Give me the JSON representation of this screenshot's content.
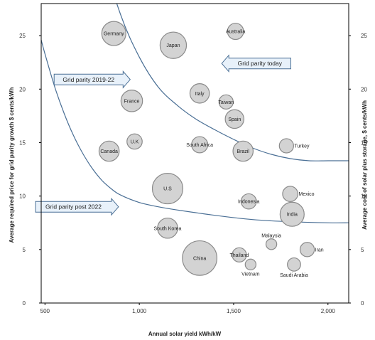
{
  "chart_data": {
    "type": "scatter",
    "subtype": "bubble",
    "xlabel": "Annual solar yield kWh/kW",
    "ylabel": "Average required price for grid parity growth $ cents/kWh",
    "ylabel_right": "Average cost of solar plus storage, $ cents/kWh",
    "xlim": [
      480,
      2110
    ],
    "ylim": [
      0,
      28
    ],
    "x_ticks": [
      500,
      1000,
      1500,
      2000
    ],
    "x_tick_labels": [
      "500",
      "1,000",
      "1,500",
      "2,000"
    ],
    "y_ticks": [
      0,
      5,
      10,
      15,
      20,
      25
    ],
    "y_tick_labels": [
      "0",
      "5",
      "10",
      "15",
      "20",
      "25"
    ],
    "y_right_ticks": [
      0,
      5,
      10,
      15,
      20,
      25
    ],
    "y_right_tick_labels": [
      "0",
      "5",
      "10",
      "15",
      "20",
      "25"
    ],
    "grid": false,
    "bubble_color": "#d3d3d3",
    "bubble_edge_color": "#8a8a8a",
    "series": [
      {
        "points": [
          {
            "label": "Germany",
            "x": 865,
            "y": 25.2,
            "size": 2.0
          },
          {
            "label": "Australia",
            "x": 1510,
            "y": 25.4,
            "size": 0.9
          },
          {
            "label": "Japan",
            "x": 1180,
            "y": 24.1,
            "size": 2.4
          },
          {
            "label": "Italy",
            "x": 1320,
            "y": 19.6,
            "size": 1.3
          },
          {
            "label": "Taiwan",
            "x": 1460,
            "y": 18.8,
            "size": 0.7
          },
          {
            "label": "France",
            "x": 960,
            "y": 18.9,
            "size": 1.6
          },
          {
            "label": "Spain",
            "x": 1505,
            "y": 17.2,
            "size": 1.2
          },
          {
            "label": "South Africa",
            "x": 1320,
            "y": 14.8,
            "size": 0.9
          },
          {
            "label": "Brazil",
            "x": 1550,
            "y": 14.2,
            "size": 1.4
          },
          {
            "label": "Turkey",
            "x": 1780,
            "y": 14.7,
            "size": 0.7
          },
          {
            "label": "Canada",
            "x": 840,
            "y": 14.2,
            "size": 1.4
          },
          {
            "label": "U.K",
            "x": 975,
            "y": 15.1,
            "size": 0.8
          },
          {
            "label": "U.S",
            "x": 1150,
            "y": 10.7,
            "size": 3.2
          },
          {
            "label": "Indonesia",
            "x": 1580,
            "y": 9.5,
            "size": 0.8
          },
          {
            "label": "Mexico",
            "x": 1800,
            "y": 10.2,
            "size": 0.8
          },
          {
            "label": "India",
            "x": 1810,
            "y": 8.3,
            "size": 2.0
          },
          {
            "label": "South Korea",
            "x": 1150,
            "y": 7.0,
            "size": 1.4
          },
          {
            "label": "China",
            "x": 1320,
            "y": 4.2,
            "size": 4.1
          },
          {
            "label": "Malaysia",
            "x": 1700,
            "y": 5.5,
            "size": 0.4
          },
          {
            "label": "Thailand",
            "x": 1530,
            "y": 4.5,
            "size": 0.7
          },
          {
            "label": "Vietnam",
            "x": 1590,
            "y": 3.6,
            "size": 0.4
          },
          {
            "label": "Iran",
            "x": 1890,
            "y": 5.0,
            "size": 0.7
          },
          {
            "label": "Saudi Arabia",
            "x": 1820,
            "y": 3.6,
            "size": 0.6
          }
        ]
      }
    ],
    "parity_curves": [
      {
        "label": "Grid parity today",
        "points": [
          [
            700,
            42
          ],
          [
            800,
            33
          ],
          [
            900,
            27
          ],
          [
            1000,
            23
          ],
          [
            1100,
            20.2
          ],
          [
            1200,
            18.5
          ],
          [
            1300,
            17.2
          ],
          [
            1400,
            16.2
          ],
          [
            1500,
            15.3
          ],
          [
            1600,
            14.5
          ],
          [
            1700,
            13.9
          ],
          [
            1800,
            13.5
          ],
          [
            1900,
            13.3
          ],
          [
            2000,
            13.3
          ],
          [
            2110,
            13.3
          ]
        ]
      },
      {
        "label": "Grid parity post 2022",
        "points": [
          [
            480,
            24.6
          ],
          [
            500,
            23.3
          ],
          [
            550,
            20.3
          ],
          [
            600,
            17.8
          ],
          [
            650,
            15.7
          ],
          [
            700,
            14.0
          ],
          [
            750,
            12.6
          ],
          [
            800,
            11.5
          ],
          [
            850,
            10.7
          ],
          [
            900,
            10.1
          ],
          [
            1000,
            9.4
          ],
          [
            1100,
            9.0
          ],
          [
            1200,
            8.7
          ],
          [
            1400,
            8.2
          ],
          [
            1600,
            7.8
          ],
          [
            1800,
            7.6
          ],
          [
            2000,
            7.5
          ],
          [
            2110,
            7.5
          ]
        ]
      }
    ],
    "annotations": [
      {
        "text": "Grid parity today",
        "direction": "left",
        "x": 1620,
        "y": 22.4
      },
      {
        "text": "Grid parity 2019-22",
        "direction": "right",
        "x": 750,
        "y": 20.9
      },
      {
        "text": "Grid parity post 2022",
        "direction": "right",
        "x": 670,
        "y": 9.0
      }
    ]
  }
}
